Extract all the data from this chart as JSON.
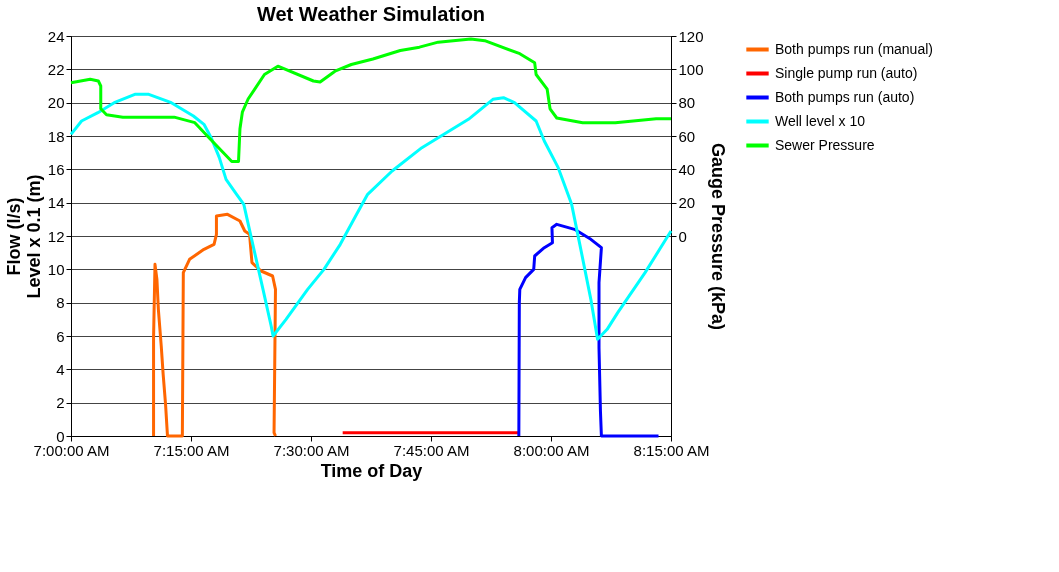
{
  "chart_data": {
    "type": "line",
    "title": "Wet Weather Simulation",
    "xlabel": "Time of Day",
    "ylabel": "Flow (l/s)\nLevel x 0.1 (m)",
    "y2label": "Gauge Pressure (kPa)",
    "xlim": [
      7,
      8.25
    ],
    "xticks": [
      {
        "value": 7,
        "label": "7:00:00 AM"
      },
      {
        "value": 7.25,
        "label": "7:15:00 AM"
      },
      {
        "value": 7.5,
        "label": "7:30:00 AM"
      },
      {
        "value": 7.75,
        "label": "7:45:00 AM"
      },
      {
        "value": 8,
        "label": "8:00:00 AM"
      },
      {
        "value": 8.25,
        "label": "8:15:00 AM"
      }
    ],
    "ylim": [
      0,
      24
    ],
    "yticks": [
      0,
      2,
      4,
      6,
      8,
      10,
      12,
      14,
      16,
      18,
      20,
      22,
      24
    ],
    "y2lim": [
      -120,
      120
    ],
    "y2ticks": [
      0,
      20,
      40,
      60,
      80,
      100,
      120
    ],
    "grid": "y",
    "legend": "right",
    "marker": "none",
    "line_style": "solid",
    "series": [
      {
        "name": "Both pumps run (manual)",
        "color": "#ff6600",
        "x": [
          7.172,
          7.172,
          7.175,
          7.179,
          7.182,
          7.188,
          7.192,
          7.197,
          7.201,
          7.232,
          7.234,
          7.247,
          7.277,
          7.298,
          7.303,
          7.303,
          7.326,
          7.352,
          7.362,
          7.372,
          7.377,
          7.396,
          7.42,
          7.426,
          7.423,
          7.426
        ],
        "values": [
          0,
          5.9,
          10.3,
          9.4,
          7.6,
          5.4,
          3.7,
          1.9,
          0,
          0,
          9.8,
          10.6,
          11.2,
          11.5,
          12.1,
          13.2,
          13.3,
          12.9,
          12.3,
          12.1,
          10.4,
          9.9,
          9.6,
          8.8,
          0.2,
          0
        ]
      },
      {
        "name": "Single pump run (auto)",
        "color": "#ff0000",
        "x": [
          7.566,
          7.932
        ],
        "values": [
          0.2,
          0.2
        ]
      },
      {
        "name": "Both pumps run (auto)",
        "color": "#0000ff",
        "x": [
          7.933,
          7.934,
          7.935,
          7.947,
          7.964,
          7.966,
          7.986,
          8.003,
          8.002,
          8.012,
          8.049,
          8.083,
          8.105,
          8.1,
          8.1,
          8.103,
          8.105,
          8.224
        ],
        "values": [
          0,
          8.0,
          8.8,
          9.5,
          10.0,
          10.8,
          11.3,
          11.6,
          12.5,
          12.7,
          12.4,
          11.8,
          11.3,
          9.2,
          5.3,
          1.5,
          0,
          0
        ]
      },
      {
        "name": "Well level x 10",
        "color": "#00ffff",
        "x": [
          7,
          7.022,
          7.056,
          7.09,
          7.133,
          7.162,
          7.209,
          7.255,
          7.277,
          7.292,
          7.309,
          7.323,
          7.345,
          7.36,
          7.374,
          7.4,
          7.417,
          7.421,
          7.448,
          7.493,
          7.527,
          7.561,
          7.595,
          7.618,
          7.669,
          7.731,
          7.765,
          7.828,
          7.879,
          7.901,
          7.924,
          7.969,
          7.986,
          8.015,
          8.043,
          8.06,
          8.083,
          8.097,
          8.117,
          8.139,
          8.196,
          8.25
        ],
        "values": [
          18.1,
          18.9,
          19.4,
          20.0,
          20.5,
          20.5,
          20.0,
          19.2,
          18.7,
          17.9,
          16.7,
          15.4,
          14.5,
          13.9,
          12.1,
          8.8,
          6.6,
          6.0,
          7.0,
          8.8,
          10.0,
          11.5,
          13.3,
          14.5,
          15.9,
          17.3,
          17.9,
          19.0,
          20.2,
          20.3,
          20.0,
          18.9,
          17.7,
          16.1,
          13.9,
          11.5,
          8.2,
          5.8,
          6.4,
          7.4,
          9.8,
          12.3
        ]
      },
      {
        "name": "Sewer Pressure",
        "color": "#00ff00",
        "axis": "y2",
        "x": [
          7,
          7.04,
          7.057,
          7.062,
          7.062,
          7.074,
          7.108,
          7.215,
          7.258,
          7.289,
          7.335,
          7.349,
          7.352,
          7.357,
          7.369,
          7.403,
          7.431,
          7.505,
          7.519,
          7.55,
          7.584,
          7.629,
          7.686,
          7.726,
          7.765,
          7.833,
          7.862,
          7.935,
          7.966,
          7.969,
          7.992,
          7.998,
          8.012,
          8.066,
          8.134,
          8.219,
          8.25
        ],
        "values": [
          92,
          94,
          93,
          90,
          76.3,
          72.7,
          71.3,
          71.3,
          68,
          58.5,
          44.7,
          44.7,
          64.4,
          74.3,
          82.2,
          96.9,
          101.9,
          93,
          92.4,
          98.9,
          102.9,
          106.2,
          111.3,
          113.3,
          116.3,
          118.2,
          117.2,
          109.4,
          103.9,
          96.9,
          88.1,
          76.3,
          70.8,
          68,
          68,
          70.3,
          70.3
        ]
      }
    ]
  }
}
